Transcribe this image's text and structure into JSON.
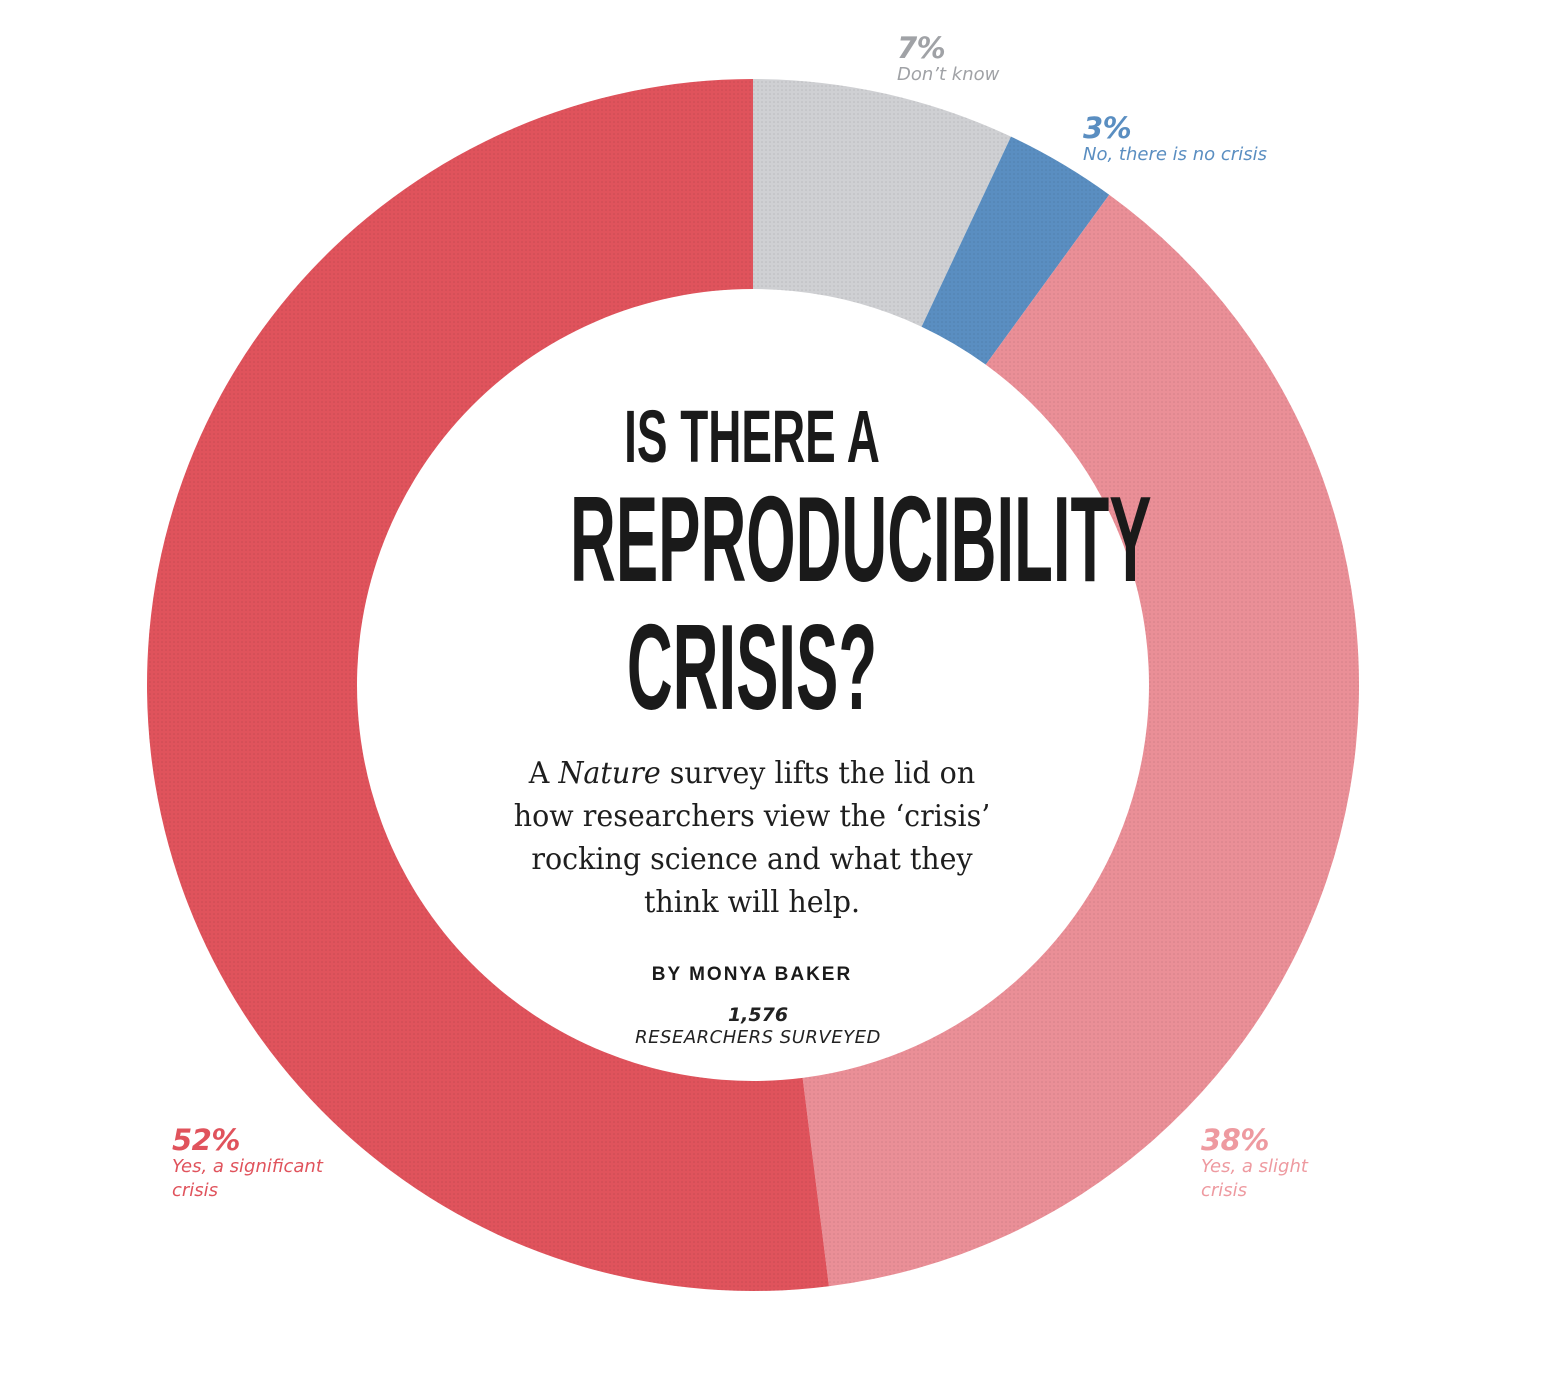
{
  "chart_data": {
    "type": "pie",
    "style": "donut",
    "title": "IS THERE A REPRODUCIBILITY CRISIS?",
    "subtitle": "A Nature survey lifts the lid on how researchers view the ‘crisis’ rocking science and what they think will help.",
    "total_respondents": "1,576",
    "total_label": "RESEARCHERS SURVEYED",
    "segments": [
      {
        "key": "dont_know",
        "label_lines": [
          "Don’t know"
        ],
        "value": 7,
        "pct_label": "7%",
        "color": "#cfd0d3",
        "text_color": "#a0a2a6"
      },
      {
        "key": "no_crisis",
        "label_lines": [
          "No, there is no crisis"
        ],
        "value": 3,
        "pct_label": "3%",
        "color": "#5a8ec1",
        "text_color": "#5a8ec1"
      },
      {
        "key": "slight",
        "label_lines": [
          "Yes, a slight",
          "crisis"
        ],
        "value": 38,
        "pct_label": "38%",
        "color": "#ea8f97",
        "text_color": "#ee9aa0"
      },
      {
        "key": "significant",
        "label_lines": [
          "Yes, a significant",
          "crisis"
        ],
        "value": 52,
        "pct_label": "52%",
        "color": "#e0535c",
        "text_color": "#e0535c"
      }
    ]
  },
  "header": {
    "title_line1": "IS THERE A",
    "title_line2": "REPRODUCIBILITY",
    "title_line3": "CRISIS?",
    "subtitle_lead": "A ",
    "subtitle_italic": "Nature",
    "subtitle_line1_rest": " survey lifts the lid on",
    "subtitle_line2": "how researchers view the ‘crisis’",
    "subtitle_line3": "rocking science and what they",
    "subtitle_line4": "think will help.",
    "byline": "BY MONYA BAKER"
  },
  "labels": {
    "dont_know_pct": "7%",
    "dont_know_desc": "Don’t know",
    "no_crisis_pct": "3%",
    "no_crisis_desc": "No, there is no crisis",
    "significant_pct": "52%",
    "significant_desc": "Yes, a significant\ncrisis",
    "slight_pct": "38%",
    "slight_desc": "Yes, a slight\ncrisis",
    "surveyed_count": "1,576",
    "surveyed_text": "RESEARCHERS SURVEYED"
  }
}
